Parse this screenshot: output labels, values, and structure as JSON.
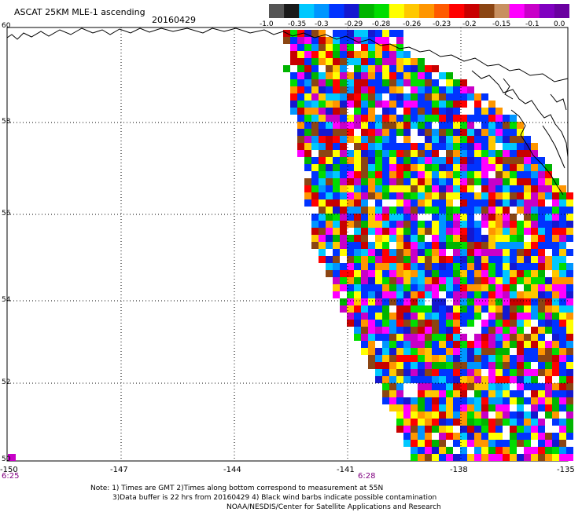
{
  "header": {
    "title": "ASCAT 25KM MLE-1 ascending",
    "date": "20160429"
  },
  "colorbar": {
    "colors": [
      "#555555",
      "#1a1a1a",
      "#00c8ff",
      "#0096ff",
      "#0033ff",
      "#1418d0",
      "#00b400",
      "#00dd00",
      "#ffff00",
      "#ffc800",
      "#ff9600",
      "#ff5a00",
      "#ff0000",
      "#c80000",
      "#8b4513",
      "#c89060",
      "#ff00ff",
      "#c800c8",
      "#8000c0",
      "#6a00a0"
    ],
    "labels": [
      "-1.0",
      "-0.35",
      "-0.3",
      "-0.29",
      "-0.28",
      "-0.26",
      "-0.23",
      "-0.2",
      "-0.15",
      "-0.1",
      "0.0"
    ]
  },
  "axes": {
    "lat_labels": [
      "60",
      "58",
      "56",
      "54",
      "52",
      "50"
    ],
    "lon_labels": [
      "-150",
      "-147",
      "-144",
      "-141",
      "-138",
      "-135"
    ],
    "times": [
      "6:25",
      "6:28"
    ]
  },
  "note": {
    "line1": "Note: 1) Times are GMT 2)Times along bottom correspond to measurement at 55N",
    "line2": "3)Data buffer is 22 hrs from 20160429 4) Black wind barbs indicate possible contamination",
    "line3": "NOAA/NESDIS/Center for Satellite Applications and Research"
  },
  "map_data": {
    "lon_range": [
      -150,
      -135
    ],
    "lat_range": [
      50,
      60
    ],
    "grid": true,
    "field": "MLE-1 colored cells over ocean swath east of approx. -141 lon"
  }
}
